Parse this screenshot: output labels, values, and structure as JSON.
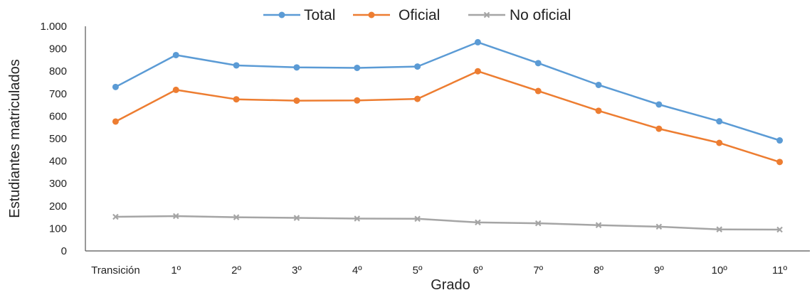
{
  "chart_data": {
    "type": "line",
    "title": "",
    "xlabel": "Grado",
    "ylabel": "Estudiantes matriculados",
    "categories": [
      "Transición",
      "1º",
      "2º",
      "3º",
      "4º",
      "5º",
      "6º",
      "7º",
      "8º",
      "9º",
      "10º",
      "11º"
    ],
    "ylim": [
      0,
      1000
    ],
    "yticks": [
      0,
      100,
      200,
      300,
      400,
      500,
      600,
      700,
      800,
      900,
      1000
    ],
    "ytick_labels": [
      "0",
      "100",
      "200",
      "300",
      "400",
      "500",
      "600",
      "700",
      "800",
      "900",
      "1.000"
    ],
    "grid": false,
    "legend_position": "top",
    "series": [
      {
        "name": "Total",
        "color": "#5B9BD5",
        "marker": "circle",
        "values": [
          730,
          872,
          826,
          817,
          815,
          821,
          929,
          836,
          739,
          652,
          577,
          492
        ]
      },
      {
        "name": "Oficial",
        "color": "#ED7D31",
        "marker": "circle",
        "values": [
          576,
          717,
          675,
          669,
          670,
          677,
          800,
          712,
          624,
          544,
          481,
          396
        ]
      },
      {
        "name": "No oficial",
        "color": "#A5A5A5",
        "marker": "x",
        "values": [
          152,
          155,
          150,
          147,
          144,
          143,
          127,
          123,
          115,
          108,
          96,
          95
        ]
      }
    ]
  }
}
